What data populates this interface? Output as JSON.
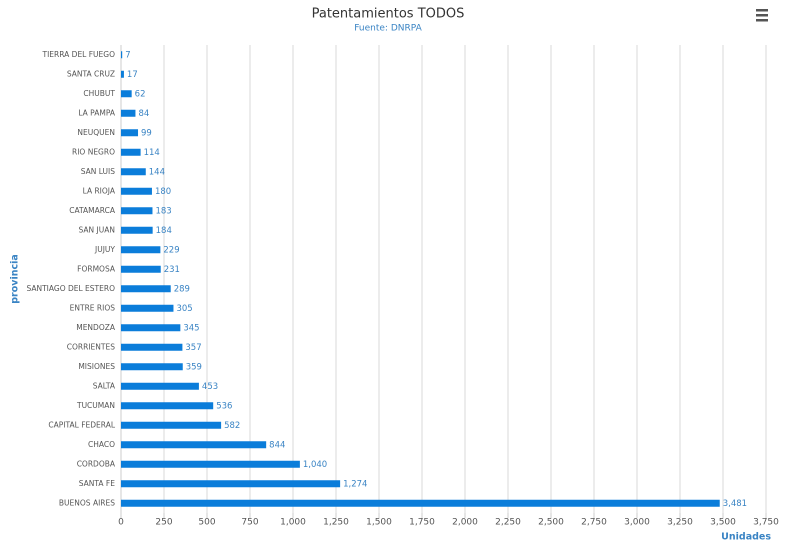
{
  "chart_data": {
    "type": "bar",
    "orientation": "horizontal",
    "title": "Patentamientos TODOS",
    "subtitle": "Fuente: DNRPA",
    "y_label": "provincia",
    "x_label": "Unidades",
    "categories": [
      "TIERRA DEL FUEGO",
      "SANTA CRUZ",
      "CHUBUT",
      "LA PAMPA",
      "NEUQUEN",
      "RIO NEGRO",
      "SAN LUIS",
      "LA RIOJA",
      "CATAMARCA",
      "SAN JUAN",
      "JUJUY",
      "FORMOSA",
      "SANTIAGO DEL ESTERO",
      "ENTRE RIOS",
      "MENDOZA",
      "CORRIENTES",
      "MISIONES",
      "SALTA",
      "TUCUMAN",
      "CAPITAL FEDERAL",
      "CHACO",
      "CORDOBA",
      "SANTA FE",
      "BUENOS AIRES"
    ],
    "values": [
      7,
      17,
      62,
      84,
      99,
      114,
      144,
      180,
      183,
      184,
      229,
      231,
      289,
      305,
      345,
      357,
      359,
      453,
      536,
      582,
      844,
      1040,
      1274,
      3481
    ],
    "value_labels": [
      "7",
      "17",
      "62",
      "84",
      "99",
      "114",
      "144",
      "180",
      "183",
      "184",
      "229",
      "231",
      "289",
      "305",
      "345",
      "357",
      "359",
      "453",
      "536",
      "582",
      "844",
      "1,040",
      "1,274",
      "3,481"
    ],
    "color": "#0b7dda",
    "xlim": [
      0,
      3750
    ],
    "xticks": [
      0,
      250,
      500,
      750,
      {
        "value": 1000,
        "label": "1,000"
      },
      {
        "value": 1250,
        "label": "1,250"
      },
      {
        "value": 1500,
        "label": "1,500"
      },
      {
        "value": 1750,
        "label": "1,750"
      },
      {
        "value": 2000,
        "label": "2,000"
      },
      {
        "value": 2250,
        "label": "2,250"
      },
      {
        "value": 2500,
        "label": "2,500"
      },
      {
        "value": 2750,
        "label": "2,750"
      },
      {
        "value": 3000,
        "label": "3,000"
      },
      {
        "value": 3250,
        "label": "3,250"
      },
      {
        "value": 3500,
        "label": "3,500"
      },
      {
        "value": 3750,
        "label": "3,750"
      }
    ],
    "grid": true
  }
}
